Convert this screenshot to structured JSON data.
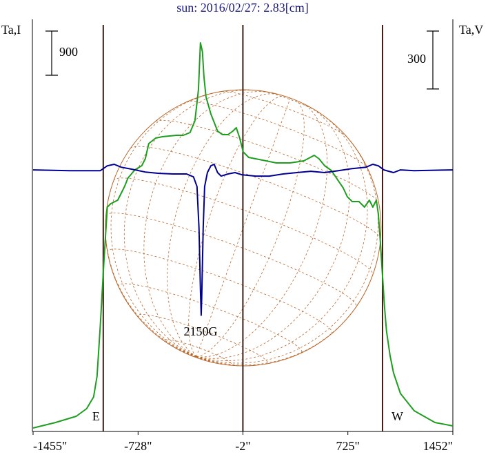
{
  "chart_data": {
    "type": "line",
    "title": "sun: 2016/02/27: 2.83[cm]",
    "y_label": "Ta,I",
    "y2_label": "Ta,V",
    "xlim": [
      -1455,
      1452
    ],
    "xticks": [
      {
        "value": -1455,
        "label": "-1455\""
      },
      {
        "value": -728,
        "label": "-728\""
      },
      {
        "value": -2,
        "label": "-2\""
      },
      {
        "value": 725,
        "label": "725\""
      },
      {
        "value": 1452,
        "label": "1452\""
      }
    ],
    "ylim": [
      0,
      8400
    ],
    "y2lim": [
      -1355,
      780
    ],
    "vlines": [
      -969,
      -2,
      965
    ],
    "limb_labels": [
      "E",
      "W"
    ],
    "scale_bars": [
      {
        "value": 900,
        "axis": "y"
      },
      {
        "value": 300,
        "axis": "y2"
      }
    ],
    "annotations": [
      "2150G"
    ],
    "series": [
      {
        "color": "#1e9e1e",
        "x": [
          -1455,
          -1299,
          -1156,
          -1084,
          -1036,
          -1012,
          -989,
          -965,
          -941,
          -917,
          -869,
          -845,
          -821,
          -798,
          -750,
          -702,
          -678,
          -654,
          -606,
          -559,
          -511,
          -463,
          -415,
          -368,
          -334,
          -310,
          -296,
          -282,
          -272,
          -258,
          -224,
          -177,
          -143,
          -105,
          -72,
          -48,
          -24,
          0,
          38,
          134,
          229,
          325,
          420,
          492,
          525,
          564,
          611,
          659,
          692,
          721,
          755,
          802,
          840,
          874,
          898,
          922,
          936,
          950,
          965,
          979,
          993,
          1017,
          1041,
          1089,
          1184,
          1328,
          1452
        ],
        "values": [
          70,
          183,
          310,
          464,
          704,
          1126,
          2181,
          3447,
          4573,
          4643,
          4713,
          4854,
          4995,
          5164,
          5333,
          5417,
          5558,
          5867,
          5980,
          6008,
          6022,
          6036,
          6036,
          6092,
          6332,
          6965,
          7921,
          7739,
          7246,
          6824,
          6472,
          6120,
          6050,
          6050,
          6120,
          6191,
          5980,
          5698,
          5586,
          5530,
          5473,
          5473,
          5515,
          5628,
          5558,
          5417,
          5318,
          5107,
          4967,
          4784,
          4685,
          4685,
          4573,
          4713,
          4573,
          4713,
          4432,
          3869,
          3166,
          2533,
          2040,
          1548,
          1196,
          774,
          422,
          183,
          113
        ]
      },
      {
        "color": "#000090",
        "axis": "y2",
        "x": [
          -1455,
          -1203,
          -989,
          -941,
          -893,
          -845,
          -774,
          -678,
          -583,
          -487,
          -392,
          -344,
          -320,
          -306,
          -296,
          -291,
          -287,
          -277,
          -267,
          -248,
          -224,
          -201,
          -177,
          -153,
          -105,
          -57,
          -10,
          86,
          181,
          277,
          372,
          468,
          564,
          659,
          755,
          850,
          898,
          936,
          974,
          1041,
          1089,
          1184,
          1452
        ],
        "values": [
          0,
          -4,
          -4,
          21,
          29,
          14,
          4,
          -11,
          -18,
          -21,
          -21,
          -36,
          -86,
          -300,
          -621,
          -753,
          -657,
          -300,
          -86,
          -14,
          21,
          29,
          -14,
          -32,
          -21,
          -14,
          -25,
          -32,
          -32,
          -21,
          -14,
          -7,
          -14,
          -4,
          7,
          14,
          29,
          21,
          0,
          -14,
          0,
          -4,
          0
        ]
      }
    ]
  }
}
